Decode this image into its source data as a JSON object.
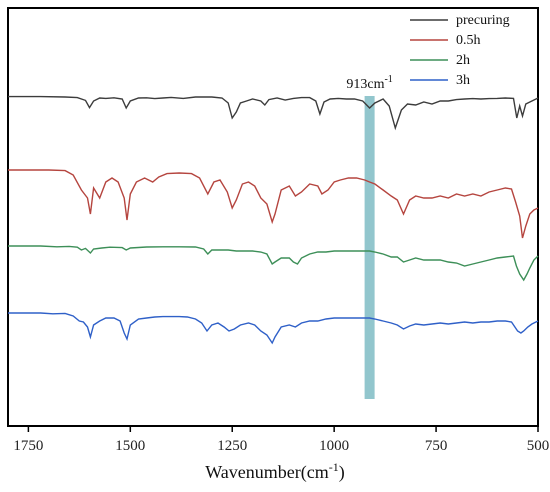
{
  "chart_data": {
    "type": "line",
    "title": "",
    "xlabel": "Wavenumber(cm",
    "xlabel_sup": "-1",
    "xlabel_close": ")",
    "ylabel": "",
    "xlim": [
      1800,
      500
    ],
    "x_reversed": true,
    "x_ticks": [
      1750,
      1500,
      1250,
      1000,
      750,
      500
    ],
    "y_ticks_shown": false,
    "grid": false,
    "legend_position": "top-right",
    "annotation": {
      "text": "913cm",
      "sup": "-1",
      "x": 913,
      "band_color": "#7fbcc4"
    },
    "series": [
      {
        "name": "precuring",
        "color": "#3c3c3c",
        "points": [
          [
            1800,
            0.3
          ],
          [
            1720,
            0.3
          ],
          [
            1660,
            0.5
          ],
          [
            1630,
            0.8
          ],
          [
            1610,
            2.2
          ],
          [
            1600,
            5.8
          ],
          [
            1590,
            2.5
          ],
          [
            1575,
            1.0
          ],
          [
            1560,
            1.2
          ],
          [
            1540,
            0.9
          ],
          [
            1520,
            1.5
          ],
          [
            1510,
            6.0
          ],
          [
            1500,
            2.5
          ],
          [
            1480,
            1.0
          ],
          [
            1460,
            0.9
          ],
          [
            1440,
            1.3
          ],
          [
            1420,
            1.0
          ],
          [
            1400,
            0.7
          ],
          [
            1370,
            1.2
          ],
          [
            1340,
            0.5
          ],
          [
            1300,
            0.5
          ],
          [
            1275,
            1.0
          ],
          [
            1260,
            3.5
          ],
          [
            1250,
            11.0
          ],
          [
            1240,
            8.0
          ],
          [
            1230,
            3.5
          ],
          [
            1215,
            2.5
          ],
          [
            1200,
            1.5
          ],
          [
            1180,
            2.5
          ],
          [
            1170,
            4.5
          ],
          [
            1160,
            1.8
          ],
          [
            1140,
            1.0
          ],
          [
            1120,
            2.0
          ],
          [
            1100,
            1.2
          ],
          [
            1080,
            0.8
          ],
          [
            1060,
            0.8
          ],
          [
            1045,
            2.5
          ],
          [
            1035,
            9.0
          ],
          [
            1025,
            3.0
          ],
          [
            1010,
            1.5
          ],
          [
            990,
            1.2
          ],
          [
            970,
            1.5
          ],
          [
            950,
            1.5
          ],
          [
            930,
            2.5
          ],
          [
            913,
            6.0
          ],
          [
            900,
            3.5
          ],
          [
            880,
            1.5
          ],
          [
            865,
            5.0
          ],
          [
            850,
            16.0
          ],
          [
            835,
            7.0
          ],
          [
            820,
            4.0
          ],
          [
            800,
            4.5
          ],
          [
            780,
            3.0
          ],
          [
            760,
            4.0
          ],
          [
            740,
            2.5
          ],
          [
            720,
            2.5
          ],
          [
            700,
            1.8
          ],
          [
            680,
            1.5
          ],
          [
            660,
            1.3
          ],
          [
            640,
            1.5
          ],
          [
            620,
            1.3
          ],
          [
            600,
            1.2
          ],
          [
            580,
            1.0
          ],
          [
            560,
            1.2
          ],
          [
            552,
            11.0
          ],
          [
            545,
            5.0
          ],
          [
            538,
            10.0
          ],
          [
            530,
            4.0
          ],
          [
            515,
            2.5
          ],
          [
            505,
            1.5
          ],
          [
            500,
            1.0
          ]
        ]
      },
      {
        "name": "0.5h",
        "color": "#b5453f",
        "points": [
          [
            1800,
            0.0
          ],
          [
            1700,
            0.0
          ],
          [
            1660,
            0.3
          ],
          [
            1640,
            2.5
          ],
          [
            1620,
            10.0
          ],
          [
            1605,
            14.0
          ],
          [
            1598,
            22.0
          ],
          [
            1590,
            9.0
          ],
          [
            1575,
            14.0
          ],
          [
            1560,
            6.0
          ],
          [
            1545,
            4.0
          ],
          [
            1530,
            6.0
          ],
          [
            1515,
            14.0
          ],
          [
            1508,
            25.0
          ],
          [
            1500,
            12.0
          ],
          [
            1485,
            6.0
          ],
          [
            1465,
            4.0
          ],
          [
            1445,
            6.0
          ],
          [
            1430,
            3.5
          ],
          [
            1410,
            1.8
          ],
          [
            1380,
            1.5
          ],
          [
            1350,
            1.8
          ],
          [
            1330,
            4.0
          ],
          [
            1310,
            12.0
          ],
          [
            1295,
            6.0
          ],
          [
            1280,
            5.0
          ],
          [
            1262,
            11.0
          ],
          [
            1250,
            19.0
          ],
          [
            1240,
            15.0
          ],
          [
            1225,
            7.0
          ],
          [
            1210,
            6.0
          ],
          [
            1195,
            8.0
          ],
          [
            1180,
            14.0
          ],
          [
            1165,
            17.0
          ],
          [
            1152,
            26.0
          ],
          [
            1145,
            22.0
          ],
          [
            1130,
            10.0
          ],
          [
            1110,
            8.0
          ],
          [
            1095,
            13.0
          ],
          [
            1080,
            11.0
          ],
          [
            1060,
            7.0
          ],
          [
            1040,
            8.0
          ],
          [
            1030,
            12.0
          ],
          [
            1015,
            10.0
          ],
          [
            1000,
            6.0
          ],
          [
            985,
            5.0
          ],
          [
            965,
            4.0
          ],
          [
            945,
            4.0
          ],
          [
            925,
            5.0
          ],
          [
            913,
            6.0
          ],
          [
            900,
            7.0
          ],
          [
            880,
            10.0
          ],
          [
            860,
            13.0
          ],
          [
            845,
            15.0
          ],
          [
            830,
            22.0
          ],
          [
            815,
            15.0
          ],
          [
            800,
            13.0
          ],
          [
            780,
            14.0
          ],
          [
            760,
            14.0
          ],
          [
            740,
            13.0
          ],
          [
            720,
            14.0
          ],
          [
            700,
            12.0
          ],
          [
            680,
            13.0
          ],
          [
            660,
            12.0
          ],
          [
            640,
            13.0
          ],
          [
            620,
            11.0
          ],
          [
            600,
            10.0
          ],
          [
            580,
            9.0
          ],
          [
            565,
            9.5
          ],
          [
            555,
            16.0
          ],
          [
            545,
            23.0
          ],
          [
            538,
            34.0
          ],
          [
            530,
            28.0
          ],
          [
            520,
            22.0
          ],
          [
            510,
            20.0
          ],
          [
            500,
            19.0
          ]
        ]
      },
      {
        "name": "2h",
        "color": "#3d8f58",
        "points": [
          [
            1800,
            0.0
          ],
          [
            1720,
            0.0
          ],
          [
            1680,
            0.4
          ],
          [
            1650,
            0.2
          ],
          [
            1630,
            0.6
          ],
          [
            1620,
            2.0
          ],
          [
            1610,
            1.2
          ],
          [
            1598,
            3.5
          ],
          [
            1590,
            1.5
          ],
          [
            1570,
            1.0
          ],
          [
            1550,
            0.6
          ],
          [
            1520,
            0.8
          ],
          [
            1510,
            2.0
          ],
          [
            1500,
            1.0
          ],
          [
            1460,
            0.5
          ],
          [
            1420,
            0.4
          ],
          [
            1380,
            0.4
          ],
          [
            1340,
            0.5
          ],
          [
            1320,
            1.5
          ],
          [
            1310,
            4.0
          ],
          [
            1300,
            2.0
          ],
          [
            1280,
            2.0
          ],
          [
            1260,
            2.0
          ],
          [
            1240,
            2.5
          ],
          [
            1220,
            2.5
          ],
          [
            1200,
            2.5
          ],
          [
            1180,
            3.0
          ],
          [
            1165,
            4.0
          ],
          [
            1152,
            9.0
          ],
          [
            1145,
            8.0
          ],
          [
            1130,
            6.0
          ],
          [
            1110,
            6.0
          ],
          [
            1100,
            8.0
          ],
          [
            1090,
            9.0
          ],
          [
            1080,
            6.0
          ],
          [
            1060,
            4.0
          ],
          [
            1040,
            3.0
          ],
          [
            1020,
            3.0
          ],
          [
            1000,
            2.5
          ],
          [
            980,
            2.5
          ],
          [
            960,
            2.5
          ],
          [
            940,
            2.5
          ],
          [
            913,
            2.5
          ],
          [
            900,
            3.0
          ],
          [
            880,
            4.0
          ],
          [
            860,
            5.5
          ],
          [
            845,
            5.5
          ],
          [
            830,
            8.0
          ],
          [
            815,
            7.0
          ],
          [
            800,
            6.0
          ],
          [
            780,
            7.0
          ],
          [
            760,
            7.0
          ],
          [
            740,
            7.0
          ],
          [
            720,
            8.0
          ],
          [
            700,
            8.5
          ],
          [
            680,
            10.0
          ],
          [
            660,
            9.0
          ],
          [
            640,
            8.0
          ],
          [
            620,
            7.0
          ],
          [
            600,
            6.0
          ],
          [
            580,
            5.5
          ],
          [
            560,
            5.0
          ],
          [
            553,
            10.0
          ],
          [
            545,
            14.0
          ],
          [
            535,
            17.0
          ],
          [
            527,
            14.0
          ],
          [
            520,
            11.0
          ],
          [
            510,
            7.0
          ],
          [
            500,
            5.0
          ]
        ]
      },
      {
        "name": "3h",
        "color": "#2f60c8",
        "points": [
          [
            1800,
            0.0
          ],
          [
            1720,
            0.0
          ],
          [
            1690,
            0.4
          ],
          [
            1660,
            0.2
          ],
          [
            1640,
            1.5
          ],
          [
            1625,
            4.0
          ],
          [
            1615,
            4.5
          ],
          [
            1605,
            7.0
          ],
          [
            1598,
            12.0
          ],
          [
            1590,
            6.0
          ],
          [
            1575,
            4.0
          ],
          [
            1560,
            2.5
          ],
          [
            1540,
            2.5
          ],
          [
            1525,
            4.0
          ],
          [
            1515,
            10.0
          ],
          [
            1508,
            13.0
          ],
          [
            1500,
            6.0
          ],
          [
            1480,
            3.0
          ],
          [
            1460,
            2.5
          ],
          [
            1440,
            2.0
          ],
          [
            1420,
            1.8
          ],
          [
            1400,
            1.8
          ],
          [
            1380,
            1.8
          ],
          [
            1360,
            2.0
          ],
          [
            1340,
            3.0
          ],
          [
            1325,
            5.0
          ],
          [
            1312,
            9.0
          ],
          [
            1300,
            6.0
          ],
          [
            1285,
            5.0
          ],
          [
            1270,
            7.0
          ],
          [
            1258,
            9.0
          ],
          [
            1245,
            8.0
          ],
          [
            1230,
            6.0
          ],
          [
            1210,
            5.0
          ],
          [
            1195,
            6.0
          ],
          [
            1180,
            9.0
          ],
          [
            1165,
            11.0
          ],
          [
            1152,
            15.0
          ],
          [
            1145,
            12.0
          ],
          [
            1130,
            7.0
          ],
          [
            1110,
            6.0
          ],
          [
            1095,
            7.0
          ],
          [
            1080,
            5.0
          ],
          [
            1060,
            4.0
          ],
          [
            1040,
            4.0
          ],
          [
            1020,
            3.0
          ],
          [
            1000,
            2.5
          ],
          [
            980,
            2.5
          ],
          [
            960,
            2.5
          ],
          [
            940,
            2.5
          ],
          [
            913,
            2.5
          ],
          [
            900,
            3.0
          ],
          [
            880,
            4.0
          ],
          [
            860,
            5.0
          ],
          [
            845,
            6.0
          ],
          [
            830,
            8.0
          ],
          [
            815,
            6.5
          ],
          [
            800,
            5.5
          ],
          [
            780,
            6.0
          ],
          [
            760,
            5.5
          ],
          [
            740,
            5.0
          ],
          [
            720,
            5.5
          ],
          [
            700,
            5.0
          ],
          [
            680,
            4.5
          ],
          [
            660,
            5.0
          ],
          [
            640,
            4.5
          ],
          [
            620,
            4.5
          ],
          [
            600,
            4.0
          ],
          [
            580,
            4.0
          ],
          [
            565,
            4.5
          ],
          [
            550,
            9.0
          ],
          [
            542,
            10.0
          ],
          [
            535,
            9.0
          ],
          [
            525,
            7.0
          ],
          [
            515,
            5.5
          ],
          [
            500,
            4.0
          ]
        ]
      }
    ]
  }
}
